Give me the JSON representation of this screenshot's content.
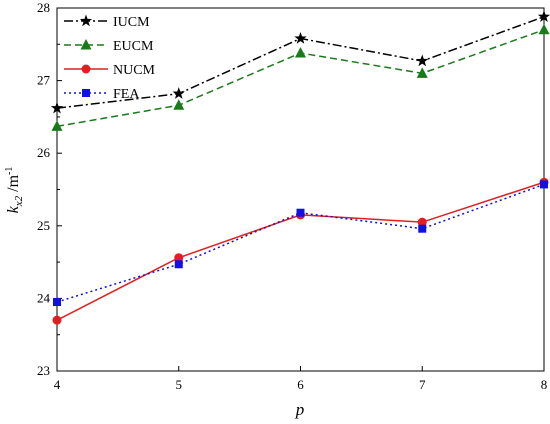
{
  "chart_data": {
    "type": "line",
    "xlabel": "p",
    "ylabel_main": "k",
    "ylabel_sub": "x2",
    "ylabel_unit": "/m",
    "ylabel_unit_exp": "-1",
    "x": [
      4,
      5,
      6,
      7,
      8
    ],
    "xlim": [
      4,
      8
    ],
    "ylim": [
      23,
      28
    ],
    "x_ticks": [
      "4",
      "5",
      "6",
      "7",
      "8"
    ],
    "y_ticks": [
      "23",
      "24",
      "25",
      "26",
      "27",
      "28"
    ],
    "grid": false,
    "legend_position": "top-left",
    "series": [
      {
        "name": "IUCM",
        "values": [
          26.62,
          26.82,
          27.58,
          27.27,
          27.88
        ],
        "color": "#000000",
        "dash": "dash-dot",
        "marker": "star"
      },
      {
        "name": "EUCM",
        "values": [
          26.37,
          26.66,
          27.38,
          27.1,
          27.7
        ],
        "color": "#1a7a1a",
        "dash": "dashed",
        "marker": "triangle"
      },
      {
        "name": "NUCM",
        "values": [
          23.7,
          24.56,
          25.15,
          25.05,
          25.6
        ],
        "color": "#e02020",
        "dash": "solid",
        "marker": "circle"
      },
      {
        "name": "FEA",
        "values": [
          23.95,
          24.47,
          25.18,
          24.96,
          25.57
        ],
        "color": "#1010e0",
        "dash": "dotted",
        "marker": "square"
      }
    ]
  }
}
